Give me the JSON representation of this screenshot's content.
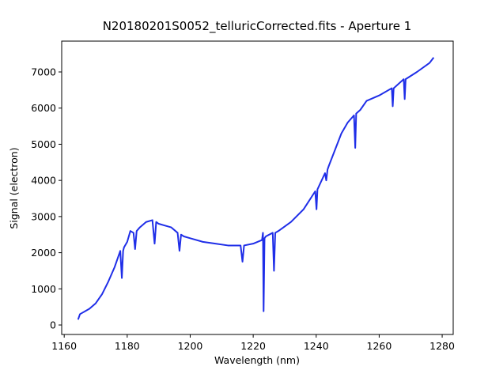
{
  "chart_data": {
    "type": "line",
    "title": "N20180201S0052_telluricCorrected.fits - Aperture 1",
    "x_label": "Wavelength (nm)",
    "y_label": "Signal (electron)",
    "x": [
      1164.4,
      1165,
      1168,
      1170,
      1172,
      1174,
      1176,
      1177,
      1177.8,
      1178.3,
      1178.7,
      1179,
      1180,
      1181,
      1182,
      1182.5,
      1183,
      1184,
      1186,
      1188,
      1188.7,
      1189.2,
      1190,
      1192,
      1194,
      1196,
      1196.6,
      1197.1,
      1198,
      1200,
      1204,
      1208,
      1212,
      1216,
      1216.6,
      1217.1,
      1220,
      1222.8,
      1223.1,
      1223.3,
      1223.6,
      1224,
      1226.2,
      1226.6,
      1227,
      1228,
      1232,
      1236,
      1239.7,
      1240.1,
      1240.4,
      1242.8,
      1243.2,
      1243.6,
      1244,
      1248,
      1250,
      1252,
      1252.4,
      1252.7,
      1254,
      1256,
      1260,
      1264,
      1264.3,
      1264.6,
      1267.8,
      1268.1,
      1268.4,
      1272,
      1276,
      1277.3
    ],
    "series": [
      {
        "name": "Aperture 1",
        "color": "#1f2ee8",
        "values": [
          150,
          300,
          450,
          600,
          850,
          1200,
          1600,
          1850,
          2050,
          1300,
          2050,
          2150,
          2300,
          2600,
          2550,
          2100,
          2600,
          2700,
          2850,
          2900,
          2250,
          2850,
          2800,
          2750,
          2700,
          2550,
          2050,
          2500,
          2450,
          2400,
          2300,
          2250,
          2200,
          2200,
          1750,
          2200,
          2250,
          2350,
          2550,
          380,
          2400,
          2450,
          2550,
          1500,
          2550,
          2600,
          2850,
          3200,
          3700,
          3200,
          3750,
          4200,
          4000,
          4300,
          4400,
          5300,
          5600,
          5800,
          4900,
          5850,
          5950,
          6200,
          6350,
          6550,
          6050,
          6550,
          6800,
          6250,
          6800,
          7000,
          7250,
          7400
        ]
      }
    ],
    "xlim": [
      1159.2,
      1283.5
    ],
    "ylim": [
      -262,
      7853
    ],
    "xticks": [
      1160,
      1180,
      1200,
      1220,
      1240,
      1260,
      1280
    ],
    "yticks": [
      0,
      1000,
      2000,
      3000,
      4000,
      5000,
      6000,
      7000
    ],
    "grid": false
  }
}
